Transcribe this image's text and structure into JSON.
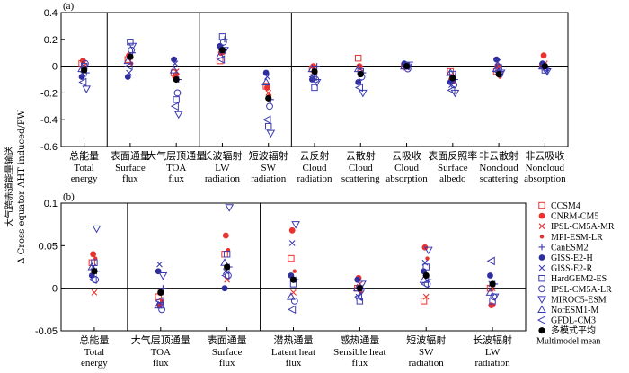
{
  "figure": {
    "ylabel_line1": "大气跨赤道能量输送",
    "ylabel_line2": "Δ Cross equator AHT induced/PW"
  },
  "chart_data": [
    {
      "type": "scatter",
      "panel_label": "(a)",
      "ylim": [
        -0.6,
        0.4
      ],
      "yticks": [
        0.4,
        0.2,
        0,
        -0.2,
        -0.4,
        -0.6
      ],
      "ytick_labels": [
        "0.4",
        "0.2",
        "0",
        "-0.2",
        "-0.4",
        "-0.6"
      ],
      "zero_line": true,
      "separators_after_category": [
        0,
        2,
        4
      ],
      "categories": [
        {
          "zh": "总能量",
          "en": "Total energy"
        },
        {
          "zh": "表面通量",
          "en": "Surface flux"
        },
        {
          "zh": "大气层顶通量",
          "en": "TOA flux"
        },
        {
          "zh": "长波辐射",
          "en": "LW radiation"
        },
        {
          "zh": "短波辐射",
          "en": "SW radiation"
        },
        {
          "zh": "云反射",
          "en": "Cloud radiation"
        },
        {
          "zh": "云散射",
          "en": "Cloud scattering"
        },
        {
          "zh": "云吸收",
          "en": "Cloud absorption"
        },
        {
          "zh": "表面反照率",
          "en": "Surface albedo"
        },
        {
          "zh": "非云散射",
          "en": "Noncloud scattering"
        },
        {
          "zh": "非云吸收",
          "en": "Noncloud absorption"
        }
      ],
      "series": [
        {
          "name": "CCSM4",
          "values": [
            0.02,
            0.05,
            -0.05,
            0.04,
            -0.15,
            -0.02,
            0.06,
            0.0,
            -0.04,
            -0.04,
            0.0
          ]
        },
        {
          "name": "CNRM-CM5",
          "values": [
            0.04,
            0.08,
            -0.08,
            0.1,
            -0.16,
            0.0,
            0.0,
            0.0,
            -0.1,
            0.0,
            0.08
          ]
        },
        {
          "name": "IPSL-CM5A-MR",
          "values": [
            0.0,
            0.07,
            -0.04,
            0.12,
            -0.2,
            -0.04,
            -0.02,
            -0.01,
            -0.08,
            -0.05,
            0.02
          ]
        },
        {
          "name": "MPI-ESM-LR",
          "values": [
            -0.02,
            0.02,
            -0.06,
            0.1,
            -0.22,
            -0.05,
            -0.06,
            0.0,
            -0.12,
            -0.08,
            0.0
          ]
        },
        {
          "name": "CanESM2",
          "values": [
            -0.05,
            0.1,
            -0.1,
            0.2,
            -0.25,
            0.0,
            -0.05,
            0.01,
            -0.1,
            -0.04,
            -0.02
          ]
        },
        {
          "name": "GISS-E2-H",
          "values": [
            -0.08,
            -0.08,
            0.05,
            0.15,
            -0.05,
            -0.1,
            -0.12,
            0.02,
            -0.12,
            0.05,
            0.02
          ]
        },
        {
          "name": "GISS-E2-R",
          "values": [
            -0.06,
            -0.05,
            0.02,
            0.14,
            -0.08,
            -0.08,
            -0.12,
            0.01,
            -0.14,
            0.03,
            0.0
          ]
        },
        {
          "name": "HardGEM2-ES",
          "values": [
            0.0,
            0.18,
            -0.25,
            0.22,
            -0.45,
            -0.16,
            -0.04,
            0.0,
            -0.06,
            -0.01,
            -0.03
          ]
        },
        {
          "name": "IPSL-CM5A-LR",
          "values": [
            0.02,
            0.12,
            -0.2,
            0.18,
            -0.3,
            -0.1,
            -0.08,
            -0.02,
            -0.14,
            -0.06,
            -0.02
          ]
        },
        {
          "name": "MIROC5-ESM",
          "values": [
            -0.17,
            0.15,
            -0.36,
            0.12,
            -0.5,
            -0.12,
            -0.2,
            0.01,
            -0.2,
            -0.05,
            -0.04
          ]
        },
        {
          "name": "NorESM1-M",
          "values": [
            -0.02,
            0.04,
            -0.03,
            0.08,
            -0.12,
            -0.02,
            -0.02,
            0.0,
            -0.05,
            -0.02,
            0.0
          ]
        },
        {
          "name": "GFDL-CM3",
          "values": [
            -0.12,
            0.0,
            -0.3,
            0.05,
            -0.4,
            -0.08,
            -0.16,
            0.0,
            -0.18,
            -0.04,
            -0.01
          ]
        },
        {
          "name": "多模式平均 Multimodel mean",
          "values": [
            -0.03,
            0.07,
            -0.1,
            0.12,
            -0.24,
            -0.04,
            -0.06,
            0.0,
            -0.09,
            -0.06,
            0.0
          ]
        }
      ]
    },
    {
      "type": "scatter",
      "panel_label": "(b)",
      "ylim": [
        -0.05,
        0.1
      ],
      "yticks": [
        0.1,
        0.05,
        0,
        -0.05
      ],
      "ytick_labels": [
        "0.1",
        "0.05",
        "0",
        "-0.05"
      ],
      "zero_line": true,
      "separators_after_category": [
        0,
        2
      ],
      "categories": [
        {
          "zh": "总能量",
          "en": "Total energy"
        },
        {
          "zh": "大气层顶通量",
          "en": "TOA flux"
        },
        {
          "zh": "表面通量",
          "en": "Surface flux"
        },
        {
          "zh": "潜热通量",
          "en": "Latent heat flux"
        },
        {
          "zh": "感热通量",
          "en": "Sensible heat flux"
        },
        {
          "zh": "短波辐射",
          "en": "SW radiation"
        },
        {
          "zh": "长波辐射",
          "en": "LW radiation"
        }
      ],
      "series": [
        {
          "name": "CCSM4",
          "values": [
            0.03,
            -0.01,
            0.04,
            0.035,
            0.0,
            -0.015,
            0.0
          ]
        },
        {
          "name": "CNRM-CM5",
          "values": [
            0.04,
            -0.02,
            0.062,
            0.068,
            0.012,
            0.048,
            -0.02
          ]
        },
        {
          "name": "IPSL-CM5A-MR",
          "values": [
            -0.005,
            -0.005,
            0.01,
            -0.005,
            0.005,
            -0.01,
            0.0
          ]
        },
        {
          "name": "MPI-ESM-LR",
          "values": [
            0.035,
            -0.015,
            0.045,
            0.02,
            -0.005,
            0.035,
            -0.02
          ]
        },
        {
          "name": "CanESM2",
          "values": [
            0.02,
            0.0,
            0.025,
            0.01,
            0.0,
            0.01,
            0.005
          ]
        },
        {
          "name": "GISS-E2-H",
          "values": [
            0.015,
            0.02,
            0.0,
            0.015,
            0.01,
            0.02,
            0.015
          ]
        },
        {
          "name": "GISS-E2-R",
          "values": [
            0.025,
            0.028,
            0.02,
            0.053,
            -0.01,
            0.03,
            0.005
          ]
        },
        {
          "name": "HardGEM2-ES",
          "values": [
            0.03,
            -0.02,
            0.04,
            0.005,
            -0.015,
            0.025,
            -0.015
          ]
        },
        {
          "name": "IPSL-CM5A-LR",
          "values": [
            0.01,
            -0.025,
            0.015,
            -0.015,
            -0.002,
            0.005,
            -0.01
          ]
        },
        {
          "name": "MIROC5-ESM",
          "values": [
            0.07,
            0.015,
            0.095,
            0.075,
            0.005,
            0.045,
            -0.01
          ]
        },
        {
          "name": "NorESM1-M",
          "values": [
            0.025,
            -0.02,
            0.03,
            -0.01,
            0.0,
            0.01,
            -0.005
          ]
        },
        {
          "name": "GFDL-CM3",
          "values": [
            0.01,
            -0.015,
            0.015,
            -0.025,
            -0.01,
            0.005,
            0.032
          ]
        },
        {
          "name": "多模式平均 Multimodel mean",
          "values": [
            0.02,
            -0.005,
            0.025,
            0.01,
            0.0,
            0.015,
            0.005
          ]
        }
      ]
    }
  ],
  "legend": {
    "placement": "right of panel (b)",
    "entries": [
      {
        "label": "CCSM4",
        "marker": "square-open",
        "color": "#e8322e"
      },
      {
        "label": "CNRM-CM5",
        "marker": "circle-filled",
        "color": "#e8322e"
      },
      {
        "label": "IPSL-CM5A-MR",
        "marker": "x",
        "color": "#e8322e"
      },
      {
        "label": "MPI-ESM-LR",
        "marker": "dot-small",
        "color": "#e8322e"
      },
      {
        "label": "CanESM2",
        "marker": "plus",
        "color": "#3a3ab0"
      },
      {
        "label": "GISS-E2-H",
        "marker": "circle-filled",
        "color": "#2e2e9e"
      },
      {
        "label": "GISS-E2-R",
        "marker": "x",
        "color": "#3a3ab0"
      },
      {
        "label": "HardGEM2-ES",
        "marker": "square-open",
        "color": "#3a3ab0"
      },
      {
        "label": "IPSL-CM5A-LR",
        "marker": "circle-open",
        "color": "#3a3ab0"
      },
      {
        "label": "MIROC5-ESM",
        "marker": "triangle-down-open",
        "color": "#3a3ab0"
      },
      {
        "label": "NorESM1-M",
        "marker": "triangle-up-open",
        "color": "#3a3ab0"
      },
      {
        "label": "GFDL-CM3",
        "marker": "triangle-left-open",
        "color": "#3a3ab0"
      },
      {
        "label": "多模式平均",
        "label2": "Multimodel mean",
        "marker": "circle-black",
        "color": "#000000"
      }
    ]
  }
}
